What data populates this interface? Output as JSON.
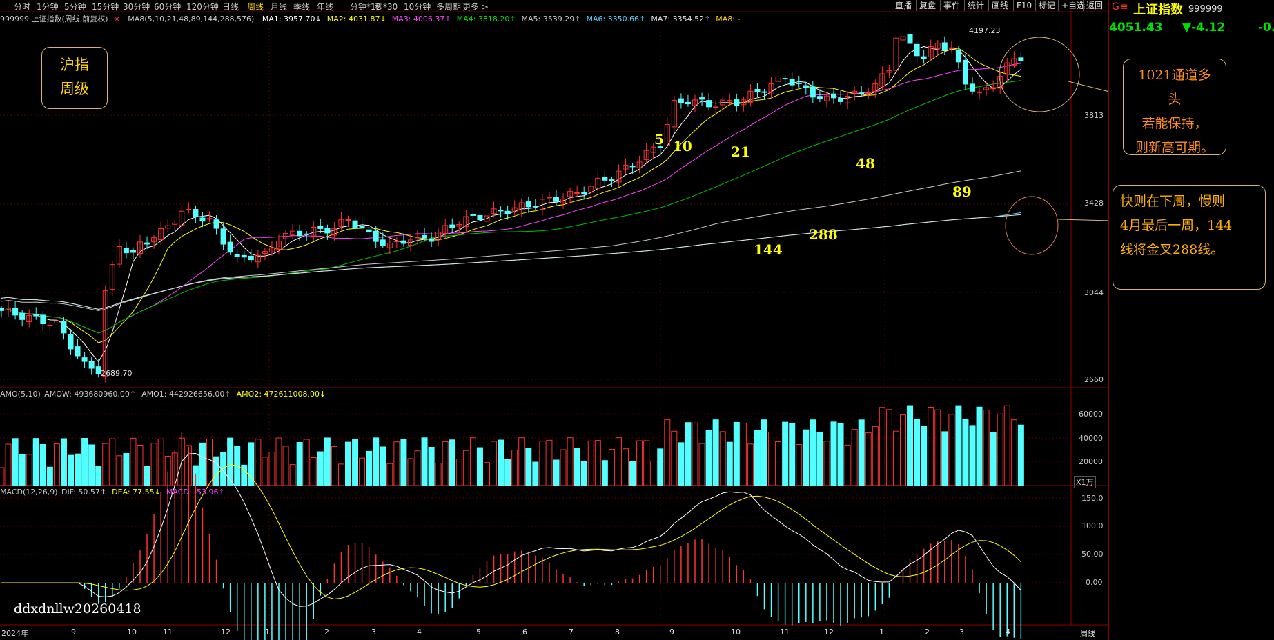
{
  "periods": [
    "分时",
    "1分钟",
    "5分钟",
    "15分钟",
    "30分钟",
    "60分钟",
    "120分钟",
    "日线",
    "周线",
    "月线",
    "季线",
    "年线",
    "分钟*12",
    "秒*30",
    "10分钟",
    "多周期",
    "更多 >"
  ],
  "active_period": "周线",
  "right_buttons": [
    "直播",
    "复盘",
    "事件",
    "统计",
    "画线",
    "F10",
    "标记",
    "+自选",
    "返回"
  ],
  "header_title": "999999 上证指数(周线,前复权)",
  "ma_bar": {
    "name": "MA8(5,10,21,48,89,144,288,576)",
    "items": [
      {
        "label": "MA1: 3957.70↓",
        "color": "#ffffff"
      },
      {
        "label": "MA2: 4031.87↓",
        "color": "#ffff00"
      },
      {
        "label": "MA3: 4006.37↑",
        "color": "#ff44ff"
      },
      {
        "label": "MA4: 3818.20↑",
        "color": "#00e000"
      },
      {
        "label": "MA5: 3539.29↑",
        "color": "#c8c8c8"
      },
      {
        "label": "MA6: 3350.66↑",
        "color": "#55d5ff"
      },
      {
        "label": "MA7: 3354.52↑",
        "color": "#e0e0e0"
      },
      {
        "label": "MA8: -",
        "color": "#ffd400"
      }
    ]
  },
  "quote": {
    "letter": "G",
    "name": "上证指数",
    "code": "999999",
    "price": "4051.43",
    "change": "▼-4.12",
    "pct": "-0."
  },
  "stamp": {
    "line1": "沪指",
    "line2": "周级"
  },
  "annotations": {
    "note1": [
      "1021通道多头",
      "若能保持，",
      "则新高可期。"
    ],
    "note2": [
      "快则在下周，慢则",
      "4月最后一周，144",
      "线将金叉288线。"
    ],
    "watermark": "ddxdnllw20260418"
  },
  "ma_labels": [
    "5",
    "10",
    "21",
    "48",
    "89",
    "144",
    "288"
  ],
  "price_axis": [
    "3813",
    "3428",
    "3044",
    "2660"
  ],
  "high_label": "4197.23",
  "low_label": "2689.70",
  "amo": {
    "title": "AMO(5,10)",
    "items": [
      {
        "label": "AMOW: 493680960.00↑",
        "color": "#c8c8c8"
      },
      {
        "label": "AMO1: 442926656.00↑",
        "color": "#c8c8c8"
      },
      {
        "label": "AMO2: 472611008.00↓",
        "color": "#ffff00"
      }
    ],
    "axis": [
      "60000",
      "40000",
      "20000"
    ],
    "unit": "X1万"
  },
  "macd": {
    "title": "MACD(12,26,9)",
    "items": [
      {
        "label": "DIF: 50.57↑",
        "color": "#c8c8c8"
      },
      {
        "label": "DEA: 77.55↓",
        "color": "#ffff00"
      },
      {
        "label": "MACD: -53.96↑",
        "color": "#ff44ff"
      }
    ],
    "axis": [
      "150.0",
      "100.0",
      "50.00",
      "0.00"
    ]
  },
  "x_axis": [
    "2024年",
    "9",
    "10",
    "11",
    "12",
    "1",
    "2",
    "3",
    "4",
    "5",
    "6",
    "7",
    "8",
    "9",
    "10",
    "11",
    "12",
    "1",
    "2",
    "3",
    "4"
  ],
  "period_label": "周线",
  "colors": {
    "up": "#ff3232",
    "down": "#54ffff",
    "grid": "#5a0000",
    "border": "#8b0000"
  }
}
